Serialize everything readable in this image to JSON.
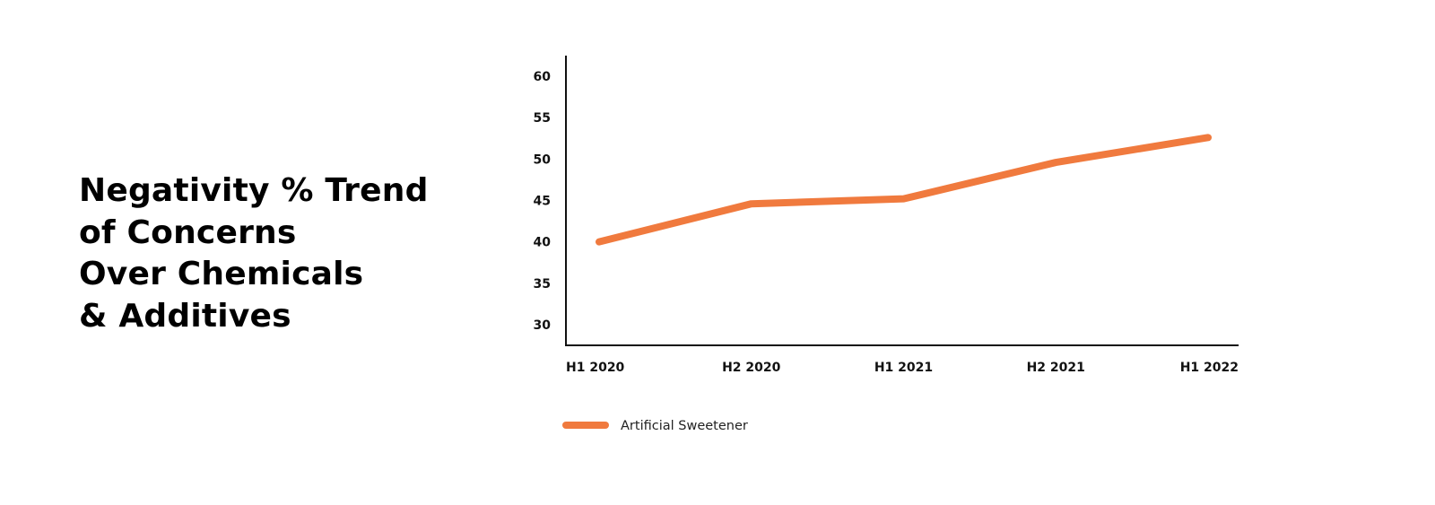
{
  "title_lines": [
    "Negativity % Trend",
    "of Concerns",
    "Over Chemicals",
    "& Additives"
  ],
  "chart_data": {
    "type": "line",
    "title": "Negativity % Trend of Concerns Over Chemicals & Additives",
    "xlabel": "",
    "ylabel": "",
    "categories": [
      "H1 2020",
      "H2 2020",
      "H1 2021",
      "H2 2021",
      "H1 2022"
    ],
    "yticks": [
      30,
      35,
      40,
      45,
      50,
      55,
      60
    ],
    "ylim": [
      27.5,
      62.5
    ],
    "grid": false,
    "legend_position": "bottom-left",
    "series": [
      {
        "name": "Artificial Sweetener",
        "color": "#F07A3E",
        "values": [
          40,
          44.6,
          45.2,
          49.6,
          52.6
        ]
      }
    ]
  }
}
